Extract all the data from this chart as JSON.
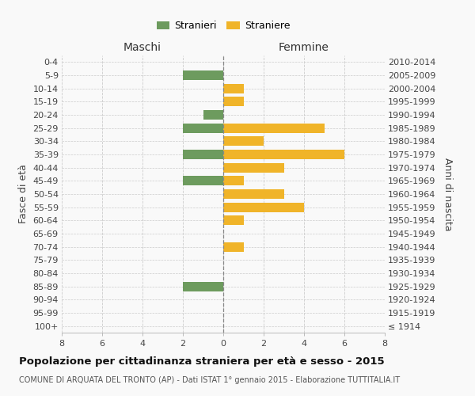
{
  "age_groups": [
    "100+",
    "95-99",
    "90-94",
    "85-89",
    "80-84",
    "75-79",
    "70-74",
    "65-69",
    "60-64",
    "55-59",
    "50-54",
    "45-49",
    "40-44",
    "35-39",
    "30-34",
    "25-29",
    "20-24",
    "15-19",
    "10-14",
    "5-9",
    "0-4"
  ],
  "birth_years": [
    "≤ 1914",
    "1915-1919",
    "1920-1924",
    "1925-1929",
    "1930-1934",
    "1935-1939",
    "1940-1944",
    "1945-1949",
    "1950-1954",
    "1955-1959",
    "1960-1964",
    "1965-1969",
    "1970-1974",
    "1975-1979",
    "1980-1984",
    "1985-1989",
    "1990-1994",
    "1995-1999",
    "2000-2004",
    "2005-2009",
    "2010-2014"
  ],
  "maschi": [
    0,
    0,
    0,
    2,
    0,
    0,
    0,
    0,
    0,
    0,
    0,
    2,
    0,
    2,
    0,
    2,
    1,
    0,
    0,
    2,
    0
  ],
  "femmine": [
    0,
    0,
    0,
    0,
    0,
    0,
    1,
    0,
    1,
    4,
    3,
    1,
    3,
    6,
    2,
    5,
    0,
    1,
    1,
    0,
    0
  ],
  "color_maschi": "#6d9b5e",
  "color_femmine": "#f0b429",
  "bg_color": "#f9f9f9",
  "grid_color": "#cccccc",
  "title": "Popolazione per cittadinanza straniera per età e sesso - 2015",
  "subtitle": "COMUNE DI ARQUATA DEL TRONTO (AP) - Dati ISTAT 1° gennaio 2015 - Elaborazione TUTTITALIA.IT",
  "ylabel_left": "Fasce di età",
  "ylabel_right": "Anni di nascita",
  "xlabel_maschi": "Maschi",
  "xlabel_femmine": "Femmine",
  "legend_maschi": "Stranieri",
  "legend_femmine": "Straniere",
  "xlim": 8
}
